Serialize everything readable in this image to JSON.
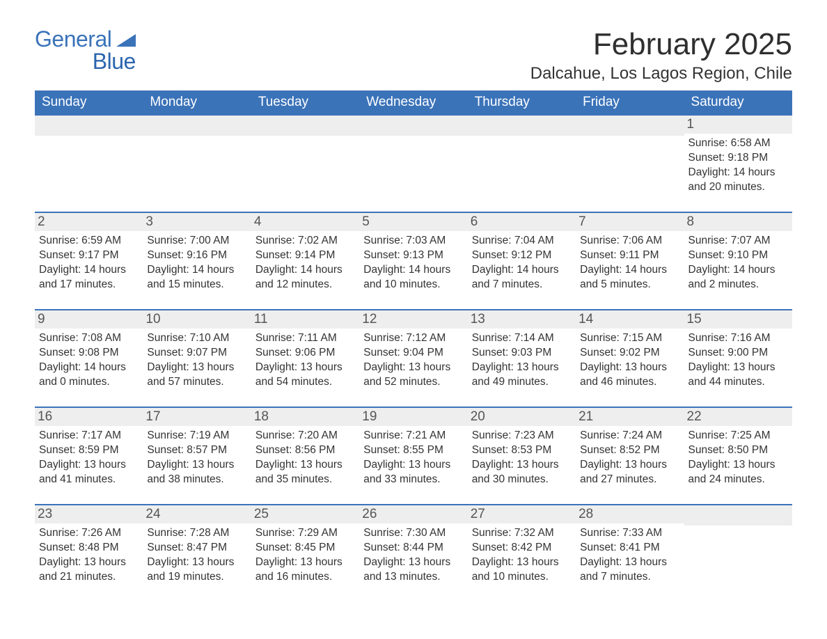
{
  "logo": {
    "word1": "General",
    "word2": "Blue",
    "color_general": "#3b73b9",
    "color_blue": "#2b66ae",
    "triangle_color": "#3b73b9"
  },
  "header": {
    "month_title": "February 2025",
    "location": "Dalcahue, Los Lagos Region, Chile"
  },
  "colors": {
    "header_bg": "#3b73b9",
    "header_text": "#ffffff",
    "daynum_bg": "#eeeeee",
    "daynum_text": "#555555",
    "body_text": "#333333",
    "row_sep": "#3b73b9",
    "page_bg": "#ffffff"
  },
  "fonts": {
    "title_size_pt": 33,
    "location_size_pt": 18,
    "weekday_size_pt": 14,
    "daynum_size_pt": 14,
    "body_size_pt": 12
  },
  "weekdays": [
    "Sunday",
    "Monday",
    "Tuesday",
    "Wednesday",
    "Thursday",
    "Friday",
    "Saturday"
  ],
  "weeks": [
    [
      {
        "day": ""
      },
      {
        "day": ""
      },
      {
        "day": ""
      },
      {
        "day": ""
      },
      {
        "day": ""
      },
      {
        "day": ""
      },
      {
        "day": "1",
        "sunrise": "Sunrise: 6:58 AM",
        "sunset": "Sunset: 9:18 PM",
        "daylight": "Daylight: 14 hours and 20 minutes."
      }
    ],
    [
      {
        "day": "2",
        "sunrise": "Sunrise: 6:59 AM",
        "sunset": "Sunset: 9:17 PM",
        "daylight": "Daylight: 14 hours and 17 minutes."
      },
      {
        "day": "3",
        "sunrise": "Sunrise: 7:00 AM",
        "sunset": "Sunset: 9:16 PM",
        "daylight": "Daylight: 14 hours and 15 minutes."
      },
      {
        "day": "4",
        "sunrise": "Sunrise: 7:02 AM",
        "sunset": "Sunset: 9:14 PM",
        "daylight": "Daylight: 14 hours and 12 minutes."
      },
      {
        "day": "5",
        "sunrise": "Sunrise: 7:03 AM",
        "sunset": "Sunset: 9:13 PM",
        "daylight": "Daylight: 14 hours and 10 minutes."
      },
      {
        "day": "6",
        "sunrise": "Sunrise: 7:04 AM",
        "sunset": "Sunset: 9:12 PM",
        "daylight": "Daylight: 14 hours and 7 minutes."
      },
      {
        "day": "7",
        "sunrise": "Sunrise: 7:06 AM",
        "sunset": "Sunset: 9:11 PM",
        "daylight": "Daylight: 14 hours and 5 minutes."
      },
      {
        "day": "8",
        "sunrise": "Sunrise: 7:07 AM",
        "sunset": "Sunset: 9:10 PM",
        "daylight": "Daylight: 14 hours and 2 minutes."
      }
    ],
    [
      {
        "day": "9",
        "sunrise": "Sunrise: 7:08 AM",
        "sunset": "Sunset: 9:08 PM",
        "daylight": "Daylight: 14 hours and 0 minutes."
      },
      {
        "day": "10",
        "sunrise": "Sunrise: 7:10 AM",
        "sunset": "Sunset: 9:07 PM",
        "daylight": "Daylight: 13 hours and 57 minutes."
      },
      {
        "day": "11",
        "sunrise": "Sunrise: 7:11 AM",
        "sunset": "Sunset: 9:06 PM",
        "daylight": "Daylight: 13 hours and 54 minutes."
      },
      {
        "day": "12",
        "sunrise": "Sunrise: 7:12 AM",
        "sunset": "Sunset: 9:04 PM",
        "daylight": "Daylight: 13 hours and 52 minutes."
      },
      {
        "day": "13",
        "sunrise": "Sunrise: 7:14 AM",
        "sunset": "Sunset: 9:03 PM",
        "daylight": "Daylight: 13 hours and 49 minutes."
      },
      {
        "day": "14",
        "sunrise": "Sunrise: 7:15 AM",
        "sunset": "Sunset: 9:02 PM",
        "daylight": "Daylight: 13 hours and 46 minutes."
      },
      {
        "day": "15",
        "sunrise": "Sunrise: 7:16 AM",
        "sunset": "Sunset: 9:00 PM",
        "daylight": "Daylight: 13 hours and 44 minutes."
      }
    ],
    [
      {
        "day": "16",
        "sunrise": "Sunrise: 7:17 AM",
        "sunset": "Sunset: 8:59 PM",
        "daylight": "Daylight: 13 hours and 41 minutes."
      },
      {
        "day": "17",
        "sunrise": "Sunrise: 7:19 AM",
        "sunset": "Sunset: 8:57 PM",
        "daylight": "Daylight: 13 hours and 38 minutes."
      },
      {
        "day": "18",
        "sunrise": "Sunrise: 7:20 AM",
        "sunset": "Sunset: 8:56 PM",
        "daylight": "Daylight: 13 hours and 35 minutes."
      },
      {
        "day": "19",
        "sunrise": "Sunrise: 7:21 AM",
        "sunset": "Sunset: 8:55 PM",
        "daylight": "Daylight: 13 hours and 33 minutes."
      },
      {
        "day": "20",
        "sunrise": "Sunrise: 7:23 AM",
        "sunset": "Sunset: 8:53 PM",
        "daylight": "Daylight: 13 hours and 30 minutes."
      },
      {
        "day": "21",
        "sunrise": "Sunrise: 7:24 AM",
        "sunset": "Sunset: 8:52 PM",
        "daylight": "Daylight: 13 hours and 27 minutes."
      },
      {
        "day": "22",
        "sunrise": "Sunrise: 7:25 AM",
        "sunset": "Sunset: 8:50 PM",
        "daylight": "Daylight: 13 hours and 24 minutes."
      }
    ],
    [
      {
        "day": "23",
        "sunrise": "Sunrise: 7:26 AM",
        "sunset": "Sunset: 8:48 PM",
        "daylight": "Daylight: 13 hours and 21 minutes."
      },
      {
        "day": "24",
        "sunrise": "Sunrise: 7:28 AM",
        "sunset": "Sunset: 8:47 PM",
        "daylight": "Daylight: 13 hours and 19 minutes."
      },
      {
        "day": "25",
        "sunrise": "Sunrise: 7:29 AM",
        "sunset": "Sunset: 8:45 PM",
        "daylight": "Daylight: 13 hours and 16 minutes."
      },
      {
        "day": "26",
        "sunrise": "Sunrise: 7:30 AM",
        "sunset": "Sunset: 8:44 PM",
        "daylight": "Daylight: 13 hours and 13 minutes."
      },
      {
        "day": "27",
        "sunrise": "Sunrise: 7:32 AM",
        "sunset": "Sunset: 8:42 PM",
        "daylight": "Daylight: 13 hours and 10 minutes."
      },
      {
        "day": "28",
        "sunrise": "Sunrise: 7:33 AM",
        "sunset": "Sunset: 8:41 PM",
        "daylight": "Daylight: 13 hours and 7 minutes."
      },
      {
        "day": ""
      }
    ]
  ]
}
